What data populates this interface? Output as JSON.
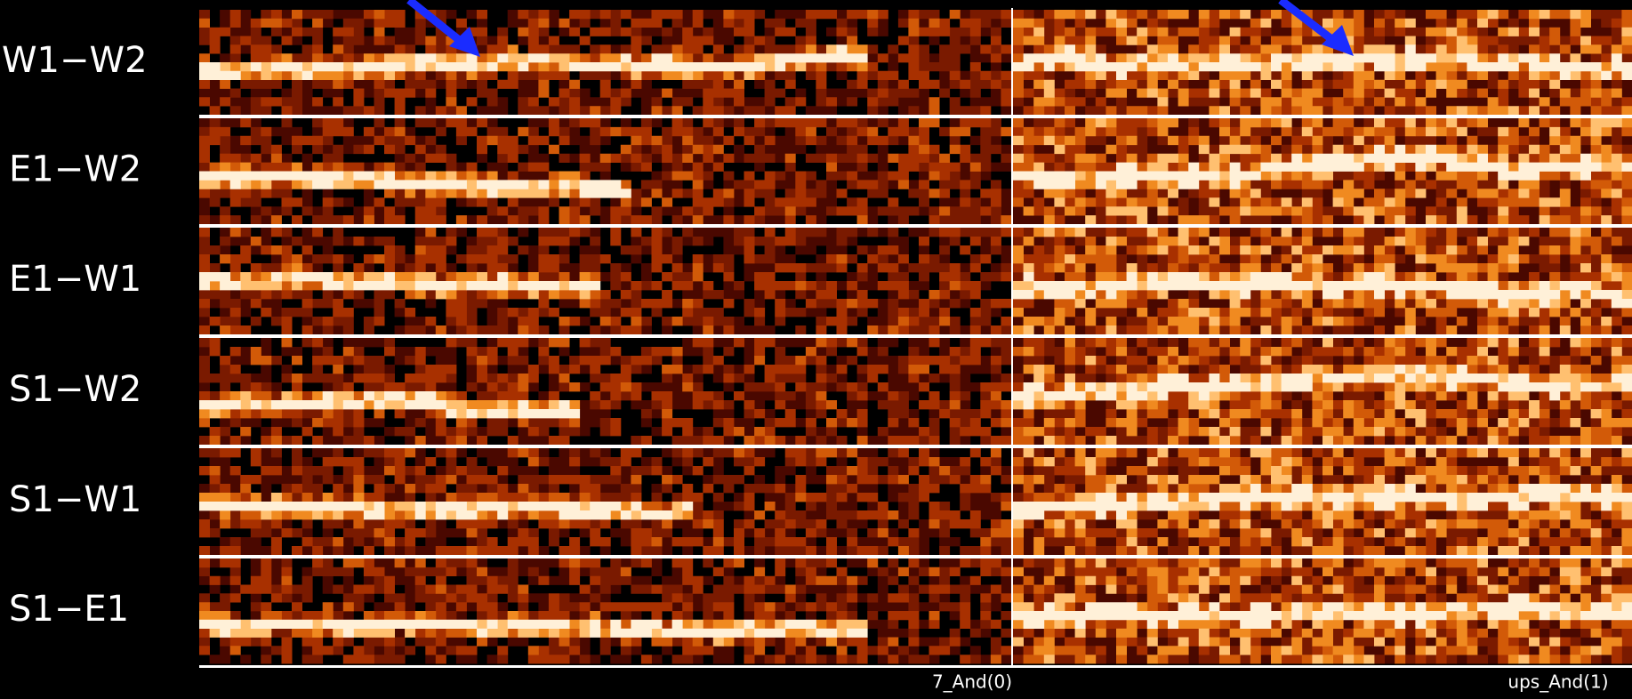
{
  "rows": [
    "W1−W2",
    "E1−W2",
    "E1−W1",
    "S1−W2",
    "S1−W1",
    "S1−E1"
  ],
  "panels": [
    "7_And(0)",
    "ups_And(1)"
  ]
}
